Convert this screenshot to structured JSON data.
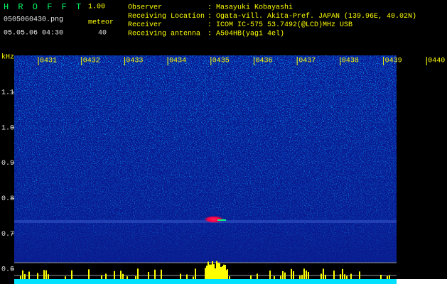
{
  "header": {
    "program": "H R O F F T",
    "version": "1.00",
    "filename": "0505060430.png",
    "datetime": "05.05.06 04:30",
    "meteor_label": "meteor",
    "meteor_count": "40"
  },
  "info": [
    {
      "label": "Observer",
      "value": ": Masayuki Kobayashi"
    },
    {
      "label": "Receiving Location",
      "value": ": Ogata-vill. Akita-Pref. JAPAN (139.96E, 40.02N)"
    },
    {
      "label": "Receiver",
      "value": ": ICOM IC-575 53.7492(@LCD)MHz USB"
    },
    {
      "label": "Receiving antenna",
      "value": ": A504HB(yagi 4el)"
    }
  ],
  "axis": {
    "unit": "kHz",
    "y_labels": [
      "1.1",
      "1.0",
      "0.9",
      "0.8",
      "0.7",
      "0.6"
    ],
    "x_labels": [
      "0431",
      "0432",
      "0433",
      "0434",
      "0435",
      "0436",
      "0437",
      "0438",
      "0439",
      "0440"
    ]
  }
}
